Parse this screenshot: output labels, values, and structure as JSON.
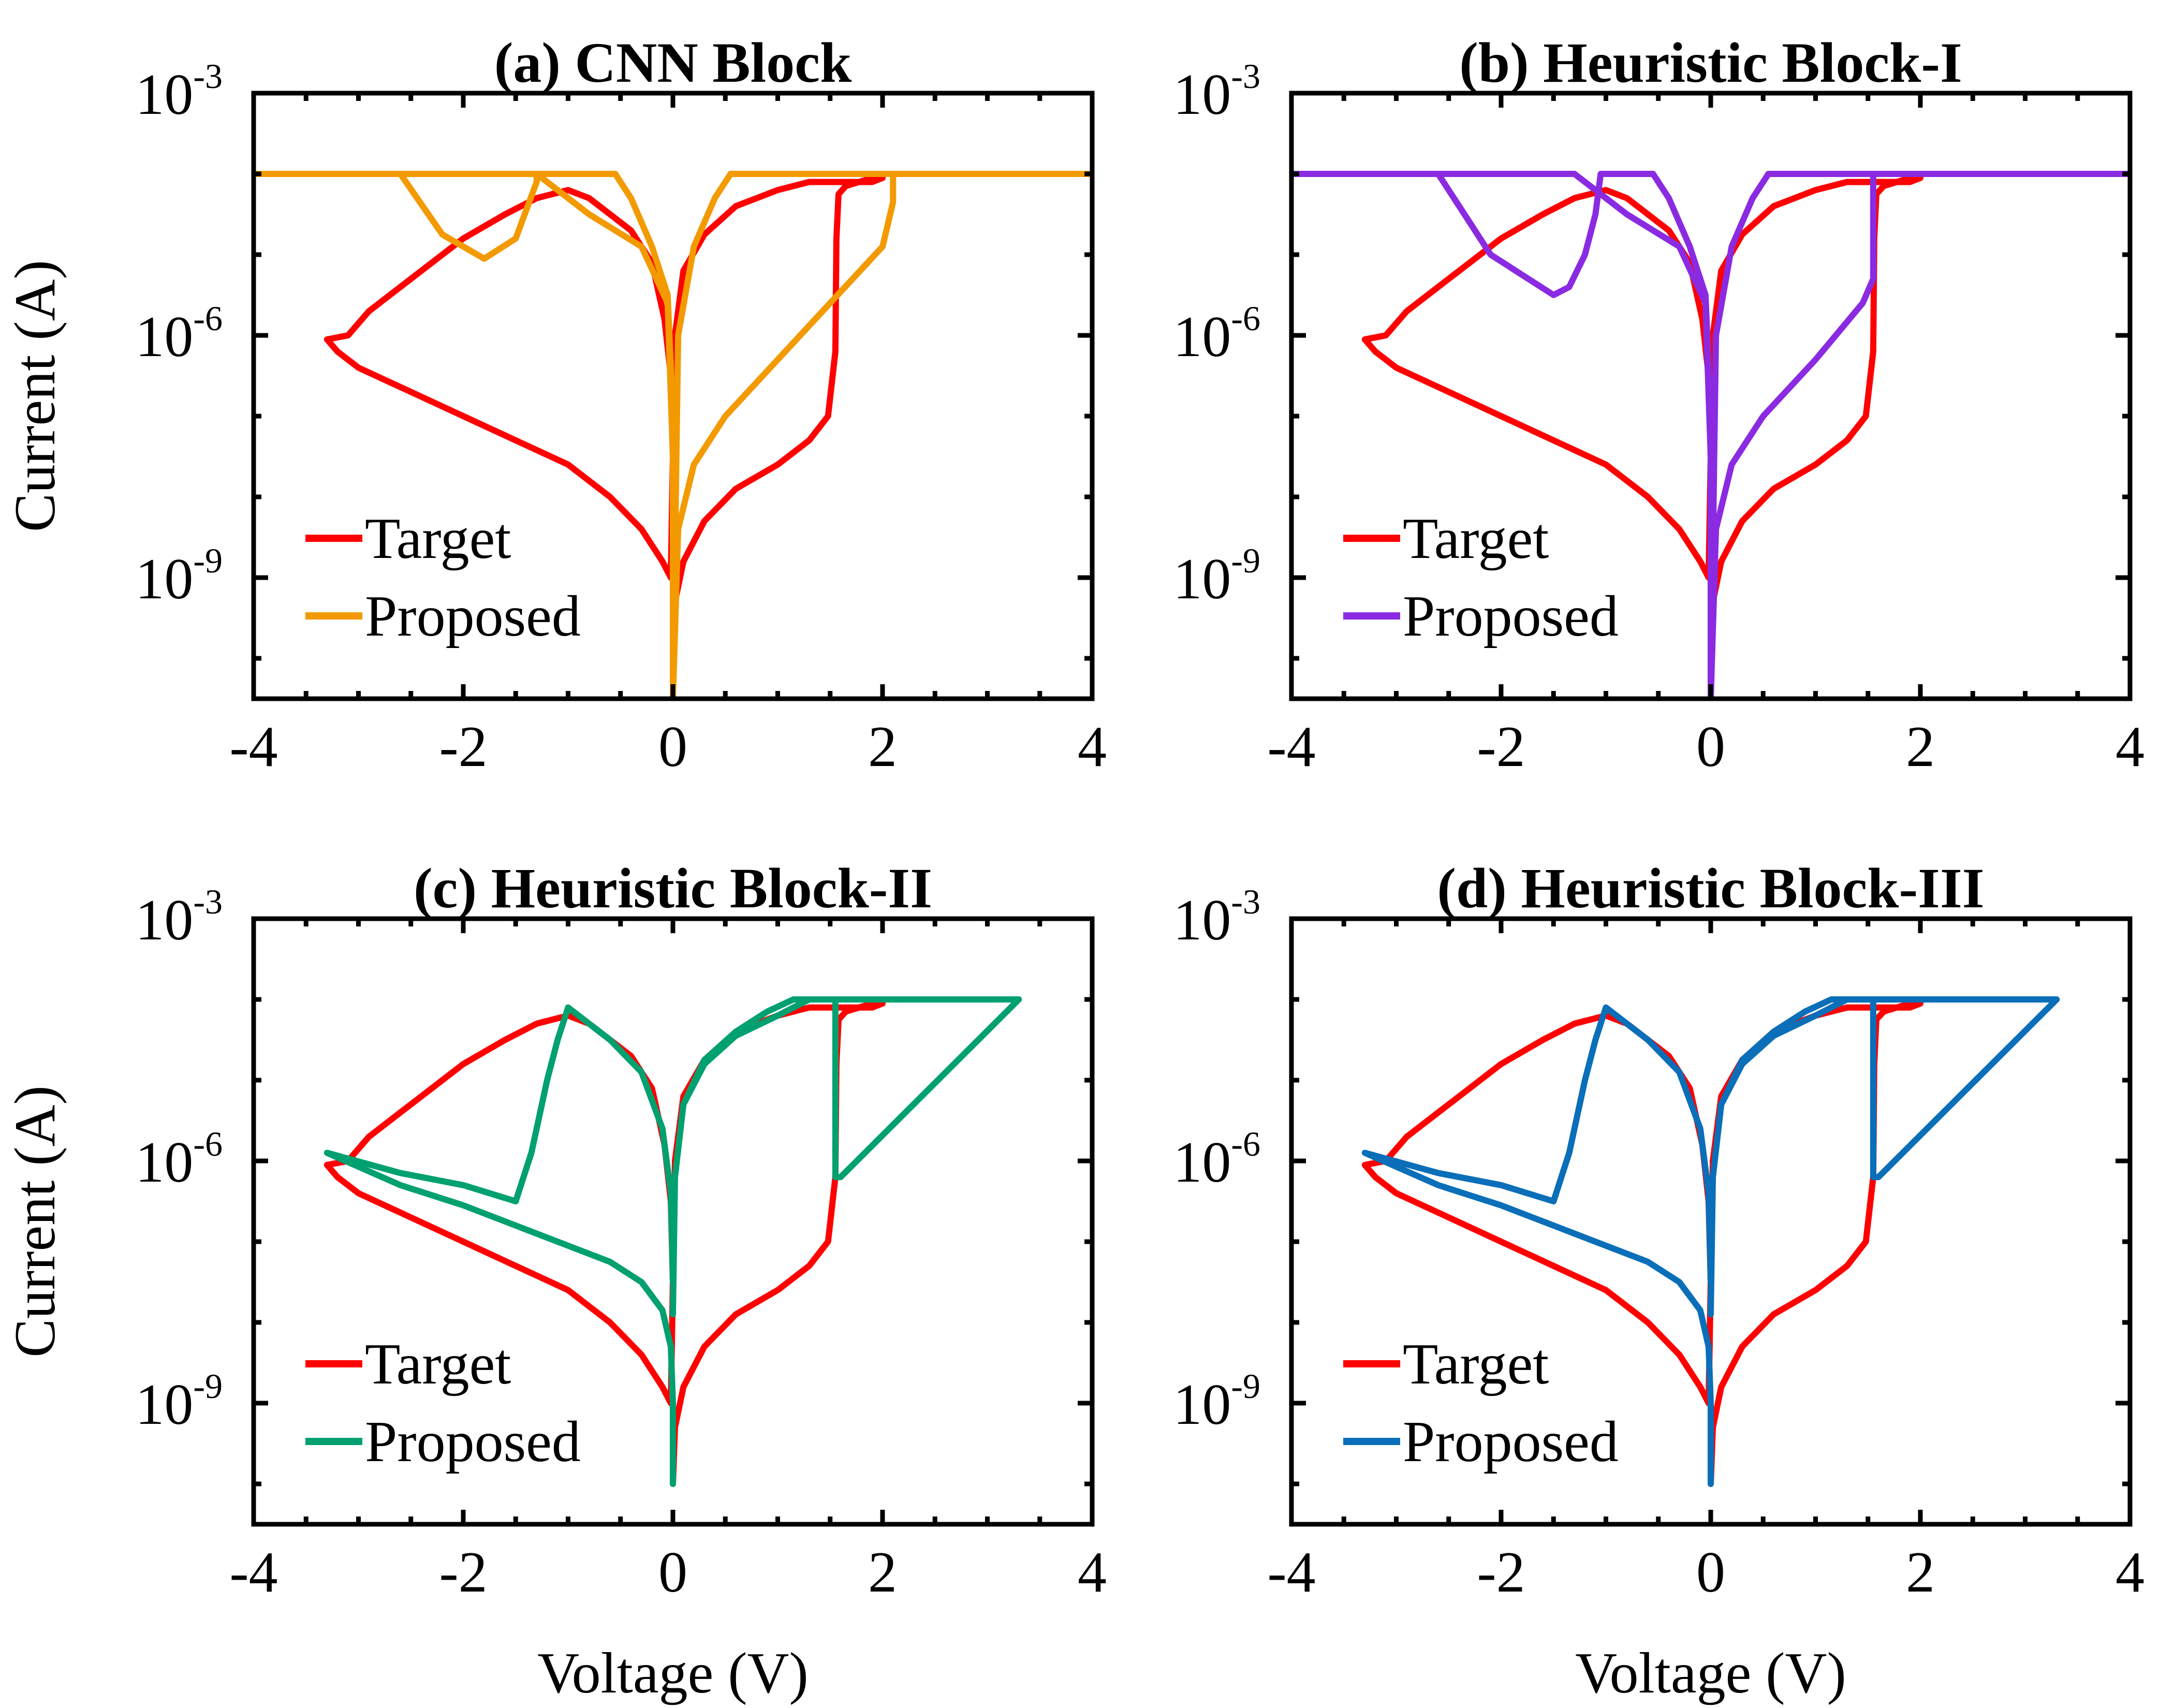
{
  "figure": {
    "xlabel": "Voltage (V)",
    "ylabel": "Current (A)"
  },
  "chart_data": [
    {
      "type": "line",
      "title": "(a) CNN Block",
      "xlabel": "Voltage (V)",
      "ylabel": "Current (A)",
      "xlim": [
        -4,
        4
      ],
      "ylim_log10": [
        -10.5,
        -3
      ],
      "yscale": "log",
      "xticks": [
        "-4",
        "-2",
        "0",
        "2",
        "4"
      ],
      "yticks": [
        {
          "base": "10",
          "exp": "-3"
        },
        {
          "base": "10",
          "exp": "-6"
        },
        {
          "base": "10",
          "exp": "-9"
        }
      ],
      "legend": {
        "position": "bottom-left",
        "entries": [
          "Target",
          "Proposed"
        ]
      },
      "series": [
        {
          "name": "Target",
          "color": "#ff0000",
          "x": [
            0,
            0.02,
            0.1,
            0.3,
            0.6,
            1.0,
            1.3,
            1.48,
            1.55,
            1.56,
            1.58,
            1.65,
            1.9,
            2.0,
            1.9,
            1.6,
            1.3,
            1.0,
            0.6,
            0.3,
            0.1,
            0.02,
            0,
            -0.02,
            -0.1,
            -0.3,
            -0.6,
            -1.0,
            -1.5,
            -2.0,
            -2.5,
            -3.0,
            -3.2,
            -3.3,
            -3.1,
            -2.9,
            -2.6,
            -2.3,
            -2.0,
            -1.6,
            -1.3,
            -1.0,
            -0.8,
            -0.6,
            -0.4,
            -0.2,
            -0.08,
            -0.02,
            0
          ],
          "y": [
            -10.0,
            -9.3,
            -8.8,
            -8.3,
            -7.9,
            -7.6,
            -7.3,
            -7.0,
            -6.2,
            -4.8,
            -4.25,
            -4.15,
            -4.05,
            -4.05,
            -4.1,
            -4.1,
            -4.1,
            -4.2,
            -4.4,
            -4.75,
            -5.2,
            -6.0,
            -7.5,
            -9.0,
            -8.8,
            -8.4,
            -8.0,
            -7.6,
            -7.3,
            -7.0,
            -6.7,
            -6.4,
            -6.2,
            -6.05,
            -6.0,
            -5.7,
            -5.4,
            -5.1,
            -4.8,
            -4.5,
            -4.3,
            -4.2,
            -4.3,
            -4.5,
            -4.7,
            -5.1,
            -5.8,
            -6.5,
            -7.5
          ]
        },
        {
          "name": "Proposed",
          "color": "#f39a00",
          "x": [
            -4,
            -2.6,
            -2.2,
            -1.8,
            -1.5,
            -1.3,
            -1.3,
            -0.55,
            -0.4,
            -0.2,
            -0.05,
            0,
            0,
            0.05,
            0.2,
            0.4,
            0.55,
            4,
            2.1,
            2.1,
            2.0,
            1.5,
            1.0,
            0.5,
            0.2,
            0.05,
            0,
            0,
            -0.05,
            -0.3,
            -0.8,
            -1.3,
            -1.8,
            -2.2,
            -2.6,
            -4
          ],
          "y": [
            -4,
            -4,
            -4.75,
            -5.05,
            -4.8,
            -4.1,
            -4,
            -4,
            -4.3,
            -4.9,
            -5.5,
            -7,
            -10.5,
            -6,
            -4.9,
            -4.3,
            -4,
            -4,
            -4,
            -4.35,
            -4.9,
            -5.6,
            -6.3,
            -7.0,
            -7.6,
            -8.4,
            -10.5,
            -7.5,
            -5.6,
            -4.9,
            -4.5,
            -4,
            -4,
            -4,
            -4,
            -4
          ]
        }
      ]
    },
    {
      "type": "line",
      "title": "(b) Heuristic Block-I",
      "xlabel": "Voltage (V)",
      "ylabel": "Current (A)",
      "xlim": [
        -4,
        4
      ],
      "ylim_log10": [
        -10.5,
        -3
      ],
      "yscale": "log",
      "xticks": [
        "-4",
        "-2",
        "0",
        "2",
        "4"
      ],
      "yticks": [
        {
          "base": "10",
          "exp": "-3"
        },
        {
          "base": "10",
          "exp": "-6"
        },
        {
          "base": "10",
          "exp": "-9"
        }
      ],
      "legend": {
        "position": "bottom-left",
        "entries": [
          "Target",
          "Proposed"
        ]
      },
      "series": [
        {
          "name": "Target",
          "color": "#ff0000",
          "x": [
            0,
            0.02,
            0.1,
            0.3,
            0.6,
            1.0,
            1.3,
            1.48,
            1.55,
            1.56,
            1.58,
            1.65,
            1.9,
            2.0,
            1.9,
            1.6,
            1.3,
            1.0,
            0.6,
            0.3,
            0.1,
            0.02,
            0,
            -0.02,
            -0.1,
            -0.3,
            -0.6,
            -1.0,
            -1.5,
            -2.0,
            -2.5,
            -3.0,
            -3.2,
            -3.3,
            -3.1,
            -2.9,
            -2.6,
            -2.3,
            -2.0,
            -1.6,
            -1.3,
            -1.0,
            -0.8,
            -0.6,
            -0.4,
            -0.2,
            -0.08,
            -0.02,
            0
          ],
          "y": [
            -10.0,
            -9.3,
            -8.8,
            -8.3,
            -7.9,
            -7.6,
            -7.3,
            -7.0,
            -6.2,
            -4.8,
            -4.25,
            -4.15,
            -4.05,
            -4.05,
            -4.1,
            -4.1,
            -4.1,
            -4.2,
            -4.4,
            -4.75,
            -5.2,
            -6.0,
            -7.5,
            -9.0,
            -8.8,
            -8.4,
            -8.0,
            -7.6,
            -7.3,
            -7.0,
            -6.7,
            -6.4,
            -6.2,
            -6.05,
            -6.0,
            -5.7,
            -5.4,
            -5.1,
            -4.8,
            -4.5,
            -4.3,
            -4.2,
            -4.3,
            -4.5,
            -4.7,
            -5.1,
            -5.8,
            -6.5,
            -7.5
          ]
        },
        {
          "name": "Proposed",
          "color": "#8a2be2",
          "x": [
            -4,
            -2.6,
            -2.1,
            -1.5,
            -1.35,
            -1.2,
            -1.1,
            -1.05,
            -0.55,
            -0.4,
            -0.2,
            -0.05,
            0,
            0,
            0.05,
            0.2,
            0.4,
            0.55,
            4,
            1.55,
            1.55,
            1.45,
            1.0,
            0.5,
            0.2,
            0.05,
            0,
            0,
            -0.05,
            -0.3,
            -0.8,
            -1.3,
            -1.8,
            -2.2,
            -2.6,
            -4
          ],
          "y": [
            -4,
            -4,
            -5.0,
            -5.5,
            -5.4,
            -5.0,
            -4.5,
            -4,
            -4,
            -4.3,
            -4.9,
            -5.5,
            -7,
            -10.5,
            -6,
            -4.9,
            -4.3,
            -4,
            -4,
            -4,
            -5.3,
            -5.6,
            -6.3,
            -7.0,
            -7.6,
            -8.4,
            -10.5,
            -7.5,
            -5.6,
            -4.9,
            -4.5,
            -4,
            -4,
            -4,
            -4,
            -4
          ]
        }
      ]
    },
    {
      "type": "line",
      "title": "(c) Heuristic Block-II",
      "xlabel": "Voltage (V)",
      "ylabel": "Current (A)",
      "xlim": [
        -4,
        4
      ],
      "ylim_log10": [
        -10.5,
        -3
      ],
      "yscale": "log",
      "xticks": [
        "-4",
        "-2",
        "0",
        "2",
        "4"
      ],
      "yticks": [
        {
          "base": "10",
          "exp": "-3"
        },
        {
          "base": "10",
          "exp": "-6"
        },
        {
          "base": "10",
          "exp": "-9"
        }
      ],
      "legend": {
        "position": "bottom-left",
        "entries": [
          "Target",
          "Proposed"
        ]
      },
      "series": [
        {
          "name": "Target",
          "color": "#ff0000",
          "x": [
            0,
            0.02,
            0.1,
            0.3,
            0.6,
            1.0,
            1.3,
            1.48,
            1.55,
            1.56,
            1.58,
            1.65,
            1.9,
            2.0,
            1.9,
            1.6,
            1.3,
            1.0,
            0.6,
            0.3,
            0.1,
            0.02,
            0,
            -0.02,
            -0.1,
            -0.3,
            -0.6,
            -1.0,
            -1.5,
            -2.0,
            -2.5,
            -3.0,
            -3.2,
            -3.3,
            -3.1,
            -2.9,
            -2.6,
            -2.3,
            -2.0,
            -1.6,
            -1.3,
            -1.0,
            -0.8,
            -0.6,
            -0.4,
            -0.2,
            -0.08,
            -0.02,
            0
          ],
          "y": [
            -10.0,
            -9.3,
            -8.8,
            -8.3,
            -7.9,
            -7.6,
            -7.3,
            -7.0,
            -6.2,
            -4.8,
            -4.25,
            -4.15,
            -4.05,
            -4.05,
            -4.1,
            -4.1,
            -4.1,
            -4.2,
            -4.4,
            -4.75,
            -5.2,
            -6.0,
            -7.5,
            -9.0,
            -8.8,
            -8.4,
            -8.0,
            -7.6,
            -7.3,
            -7.0,
            -6.7,
            -6.4,
            -6.2,
            -6.05,
            -6.0,
            -5.7,
            -5.4,
            -5.1,
            -4.8,
            -4.5,
            -4.3,
            -4.2,
            -4.3,
            -4.5,
            -4.7,
            -5.1,
            -5.8,
            -6.5,
            -7.5
          ]
        },
        {
          "name": "Proposed",
          "color": "#00a070",
          "x": [
            0,
            0.02,
            0.1,
            0.3,
            0.6,
            1.0,
            1.3,
            1.5,
            1.55,
            1.55,
            1.6,
            3.3,
            1.15,
            0.9,
            0.6,
            0.3,
            0.1,
            0.02,
            0,
            -0.02,
            -0.1,
            -0.3,
            -0.6,
            -0.9,
            -1.0,
            -1.1,
            -1.2,
            -1.35,
            -1.5,
            -2.0,
            -2.6,
            -3.3,
            -2.6,
            -2.0,
            -1.5,
            -1.0,
            -0.6,
            -0.3,
            -0.1,
            -0.02,
            0,
            0
          ],
          "y": [
            -7.9,
            -6.2,
            -5.3,
            -4.8,
            -4.45,
            -4.2,
            -4.0,
            -4.0,
            -4.0,
            -6.2,
            -6.2,
            -4.0,
            -4.0,
            -4.15,
            -4.4,
            -4.75,
            -5.3,
            -6.2,
            -7.5,
            -6.4,
            -5.6,
            -4.9,
            -4.5,
            -4.2,
            -4.1,
            -4.5,
            -5.0,
            -5.9,
            -6.5,
            -6.3,
            -6.15,
            -5.9,
            -6.3,
            -6.55,
            -6.8,
            -7.05,
            -7.25,
            -7.5,
            -7.85,
            -8.3,
            -9.0,
            -10.0
          ]
        }
      ]
    },
    {
      "type": "line",
      "title": "(d) Heuristic Block-III",
      "xlabel": "Voltage (V)",
      "ylabel": "Current (A)",
      "xlim": [
        -4,
        4
      ],
      "ylim_log10": [
        -10.5,
        -3
      ],
      "yscale": "log",
      "xticks": [
        "-4",
        "-2",
        "0",
        "2",
        "4"
      ],
      "yticks": [
        {
          "base": "10",
          "exp": "-3"
        },
        {
          "base": "10",
          "exp": "-6"
        },
        {
          "base": "10",
          "exp": "-9"
        }
      ],
      "legend": {
        "position": "bottom-left",
        "entries": [
          "Target",
          "Proposed"
        ]
      },
      "series": [
        {
          "name": "Target",
          "color": "#ff0000",
          "x": [
            0,
            0.02,
            0.1,
            0.3,
            0.6,
            1.0,
            1.3,
            1.48,
            1.55,
            1.56,
            1.58,
            1.65,
            1.9,
            2.0,
            1.9,
            1.6,
            1.3,
            1.0,
            0.6,
            0.3,
            0.1,
            0.02,
            0,
            -0.02,
            -0.1,
            -0.3,
            -0.6,
            -1.0,
            -1.5,
            -2.0,
            -2.5,
            -3.0,
            -3.2,
            -3.3,
            -3.1,
            -2.9,
            -2.6,
            -2.3,
            -2.0,
            -1.6,
            -1.3,
            -1.0,
            -0.8,
            -0.6,
            -0.4,
            -0.2,
            -0.08,
            -0.02,
            0
          ],
          "y": [
            -10.0,
            -9.3,
            -8.8,
            -8.3,
            -7.9,
            -7.6,
            -7.3,
            -7.0,
            -6.2,
            -4.8,
            -4.25,
            -4.15,
            -4.05,
            -4.05,
            -4.1,
            -4.1,
            -4.1,
            -4.2,
            -4.4,
            -4.75,
            -5.2,
            -6.0,
            -7.5,
            -9.0,
            -8.8,
            -8.4,
            -8.0,
            -7.6,
            -7.3,
            -7.0,
            -6.7,
            -6.4,
            -6.2,
            -6.05,
            -6.0,
            -5.7,
            -5.4,
            -5.1,
            -4.8,
            -4.5,
            -4.3,
            -4.2,
            -4.3,
            -4.5,
            -4.7,
            -5.1,
            -5.8,
            -6.5,
            -7.5
          ]
        },
        {
          "name": "Proposed",
          "color": "#0a6fb8",
          "x": [
            0,
            0.02,
            0.1,
            0.3,
            0.6,
            1.0,
            1.3,
            1.5,
            1.55,
            1.55,
            1.6,
            3.3,
            1.15,
            0.9,
            0.6,
            0.3,
            0.1,
            0.02,
            0,
            -0.02,
            -0.1,
            -0.3,
            -0.6,
            -0.9,
            -1.0,
            -1.1,
            -1.2,
            -1.35,
            -1.5,
            -2.0,
            -2.6,
            -3.3,
            -2.6,
            -2.0,
            -1.5,
            -1.0,
            -0.6,
            -0.3,
            -0.1,
            -0.02,
            0,
            0
          ],
          "y": [
            -7.9,
            -6.2,
            -5.3,
            -4.8,
            -4.45,
            -4.2,
            -4.0,
            -4.0,
            -4.0,
            -6.2,
            -6.2,
            -4.0,
            -4.0,
            -4.15,
            -4.4,
            -4.75,
            -5.3,
            -6.2,
            -7.5,
            -6.4,
            -5.6,
            -4.9,
            -4.5,
            -4.2,
            -4.1,
            -4.5,
            -5.0,
            -5.9,
            -6.5,
            -6.3,
            -6.15,
            -5.9,
            -6.3,
            -6.55,
            -6.8,
            -7.05,
            -7.25,
            -7.5,
            -7.85,
            -8.3,
            -9.0,
            -10.0
          ]
        }
      ]
    }
  ]
}
